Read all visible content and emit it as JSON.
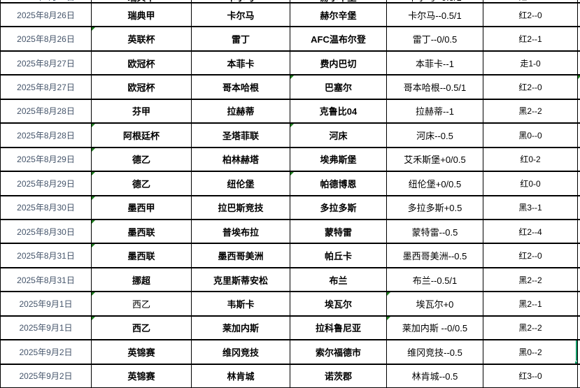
{
  "table": {
    "columns": [
      "date",
      "league",
      "home",
      "away",
      "handicap",
      "result"
    ],
    "clipped_top_row": {
      "date": "2025年8月26日",
      "league": "瑞典甲",
      "home": "卡尔马",
      "away": "赫尔辛堡",
      "handicap": "卡尔马--0.5/1",
      "result": "红2--0"
    },
    "rows": [
      {
        "date": "2025年8月26日",
        "league": "瑞典甲",
        "home": "卡尔马",
        "away": "赫尔辛堡",
        "handicap": "卡尔马--0.5/1",
        "result": "红2--0"
      },
      {
        "date": "2025年8月26日",
        "league": "英联杯",
        "home": "雷丁",
        "away": "AFC温布尔登",
        "handicap": "雷丁--0/0.5",
        "result": "红2--1"
      },
      {
        "date": "2025年8月27日",
        "league": "欧冠杯",
        "home": "本菲卡",
        "away": "费内巴切",
        "handicap": "本菲卡--1",
        "result": "走1-0"
      },
      {
        "date": "2025年8月27日",
        "league": "欧冠杯",
        "home": "哥本哈根",
        "away": "巴塞尔",
        "handicap": "哥本哈根--0.5/1",
        "result": "红2--0"
      },
      {
        "date": "2025年8月28日",
        "league": "芬甲",
        "home": "拉赫蒂",
        "away": "克鲁比04",
        "handicap": "拉赫蒂--1",
        "result": "黑2--2"
      },
      {
        "date": "2025年8月28日",
        "league": "阿根廷杯",
        "home": "圣塔菲联",
        "away": "河床",
        "handicap": "河床--0.5",
        "result": "黑0--0"
      },
      {
        "date": "2025年8月29日",
        "league": "德乙",
        "home": "柏林赫塔",
        "away": "埃弗斯堡",
        "handicap": "艾禾斯堡+0/0.5",
        "result": "红0-2"
      },
      {
        "date": "2025年8月29日",
        "league": "德乙",
        "home": "纽伦堡",
        "away": "帕德博恩",
        "handicap": "纽伦堡+0/0.5",
        "result": "红0-0"
      },
      {
        "date": "2025年8月30日",
        "league": "墨西甲",
        "home": "拉巴斯竞技",
        "away": "多拉多斯",
        "handicap": "多拉多斯+0.5",
        "result": "黑3--1"
      },
      {
        "date": "2025年8月30日",
        "league": "墨西联",
        "home": "普埃布拉",
        "away": "蒙特雷",
        "handicap": "蒙特雷--0.5",
        "result": "红2--4"
      },
      {
        "date": "2025年8月31日",
        "league": "墨西联",
        "home": "墨西哥美洲",
        "away": "帕丘卡",
        "handicap": "墨西哥美洲--0.5",
        "result": "红2--0"
      },
      {
        "date": "2025年8月31日",
        "league": "挪超",
        "home": "克里斯蒂安松",
        "away": "布兰",
        "handicap": "布兰--0.5/1",
        "result": "黑2--2"
      },
      {
        "date": "2025年9月1日",
        "league": "西乙",
        "home": "韦斯卡",
        "away": "埃瓦尔",
        "handicap": "埃瓦尔+0",
        "result": "黑2--1"
      },
      {
        "date": "2025年9月1日",
        "league": "西乙",
        "home": "莱加内斯",
        "away": "拉科鲁尼亚",
        "handicap": "莱加内斯 --0/0.5",
        "result": "黑2--2"
      },
      {
        "date": "2025年9月2日",
        "league": "英锦赛",
        "home": "维冈竞技",
        "away": "索尔福德市",
        "handicap": "维冈竞技--0.5",
        "result": "黑0--2"
      },
      {
        "date": "2025年9月2日",
        "league": "英锦赛",
        "home": "林肯城",
        "away": "诺茨郡",
        "handicap": "林肯城--0.5",
        "result": "红3--0"
      }
    ],
    "error_markers": [
      {
        "row": 1,
        "col": "league"
      },
      {
        "row": 3,
        "col": "away"
      },
      {
        "row": 3,
        "col": "extra"
      },
      {
        "row": 5,
        "col": "league"
      },
      {
        "row": 5,
        "col": "away"
      },
      {
        "row": 6,
        "col": "league"
      },
      {
        "row": 7,
        "col": "league"
      },
      {
        "row": 7,
        "col": "away"
      },
      {
        "row": 8,
        "col": "league"
      },
      {
        "row": 9,
        "col": "league"
      },
      {
        "row": 10,
        "col": "league"
      },
      {
        "row": 12,
        "col": "league"
      },
      {
        "row": 12,
        "col": "handicap"
      },
      {
        "row": 13,
        "col": "league"
      },
      {
        "row": 13,
        "col": "handicap"
      }
    ],
    "style_overrides": [
      {
        "row": 12,
        "col": "league",
        "weight": "regular"
      }
    ],
    "selection": {
      "row": 14,
      "col": "result",
      "value": "黑0--2"
    }
  },
  "colors": {
    "background": "#FFFFFF",
    "grid": "#000000",
    "text": "#000000",
    "date_text": "#44546A",
    "error_triangle": "#1E7E1E",
    "selection_border": "#119B67"
  }
}
